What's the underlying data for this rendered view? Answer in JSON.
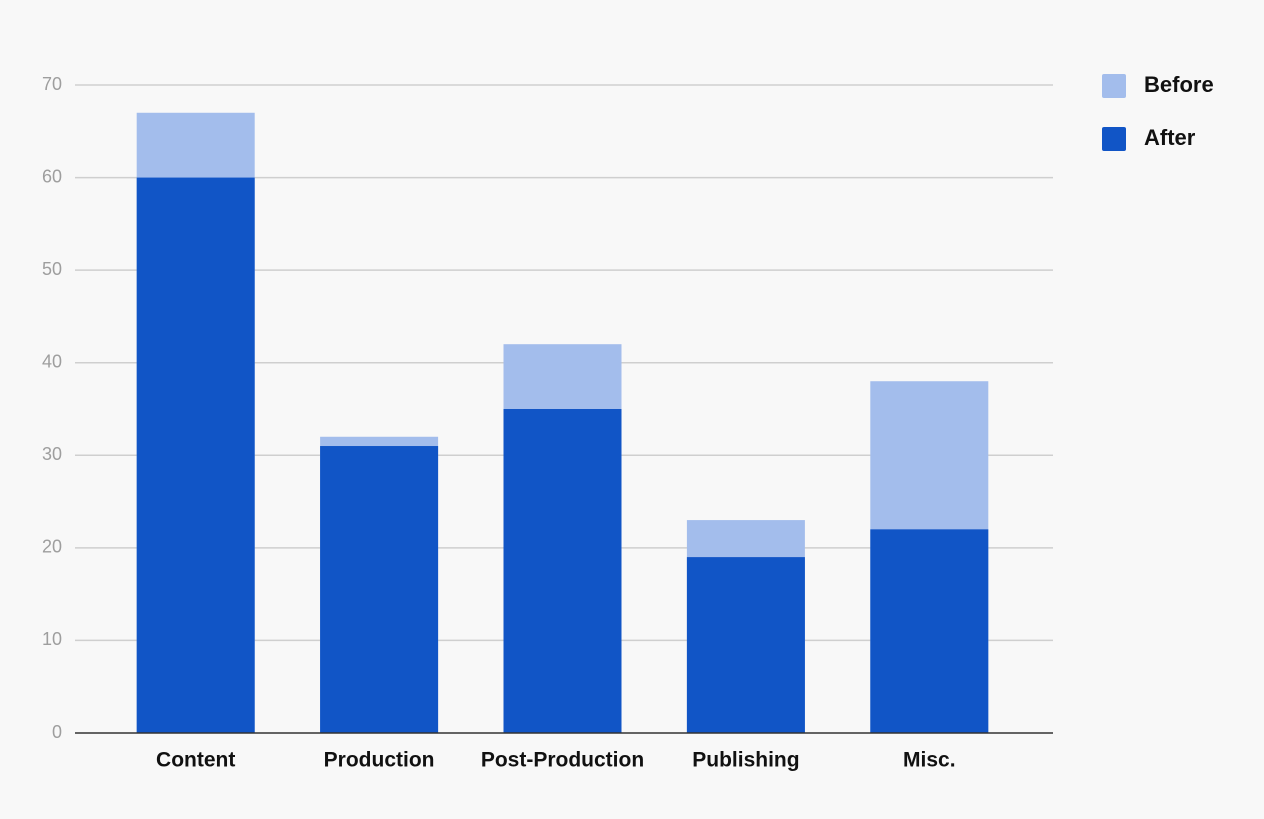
{
  "chart_data": {
    "type": "bar",
    "categories": [
      "Content",
      "Production",
      "Post-Production",
      "Publishing",
      "Misc."
    ],
    "series": [
      {
        "name": "Before",
        "color": "#a3bdec",
        "values": [
          67,
          32,
          42,
          23,
          38
        ]
      },
      {
        "name": "After",
        "color": "#1155c6",
        "values": [
          60,
          31,
          35,
          19,
          22
        ]
      }
    ],
    "ylim": [
      0,
      70
    ],
    "yticks": [
      0,
      10,
      20,
      30,
      40,
      50,
      60,
      70
    ],
    "grid": true
  }
}
